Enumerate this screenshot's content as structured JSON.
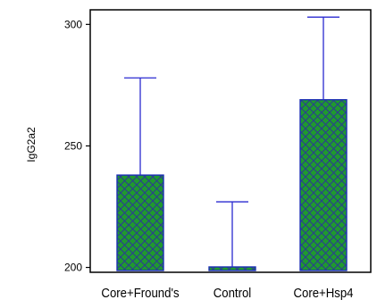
{
  "chart_data": {
    "type": "bar",
    "categories": [
      "Core+Fround's",
      "Control",
      "Core+Hsp4"
    ],
    "values": [
      238,
      200,
      269
    ],
    "error_upper": [
      278,
      227,
      303
    ],
    "ylabel": "IgG2a2",
    "xlabel": "",
    "ylim": [
      198,
      306
    ],
    "yticks": [
      200,
      250,
      300
    ],
    "grid": false,
    "colors": {
      "bar_fill": "#1f9a2e",
      "hatch": "#2a3f8f",
      "outline": "#1d2fb5",
      "whisker": "#2a2ad0",
      "axis": "#000000"
    }
  }
}
